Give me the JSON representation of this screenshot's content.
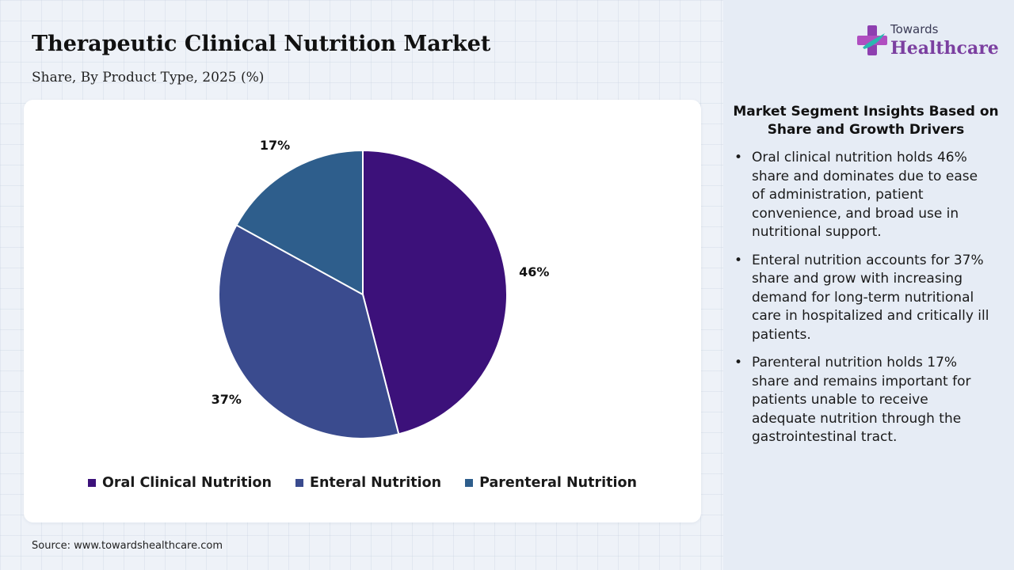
{
  "header": {
    "title": "Therapeutic Clinical Nutrition Market",
    "subtitle": "Share, By Product Type, 2025 (%)"
  },
  "chart_data": {
    "type": "pie",
    "categories": [
      "Oral Clinical Nutrition",
      "Enteral Nutrition",
      "Parenteral Nutrition"
    ],
    "values": [
      46,
      37,
      17
    ],
    "labels": [
      "46%",
      "37%",
      "17%"
    ],
    "colors": [
      "#3c117a",
      "#3a4b8e",
      "#2e5e8c"
    ],
    "title": "Therapeutic Clinical Nutrition Market",
    "subtitle": "Share, By Product Type, 2025 (%)",
    "legend_position": "bottom",
    "start": "12 o'clock, clockwise"
  },
  "source": "Source: www.towardshealthcare.com",
  "logo": {
    "top_text": "Towards",
    "main_text": "Healthcare"
  },
  "insights": {
    "title": "Market Segment Insights Based on Share and Growth Drivers",
    "items": [
      "Oral clinical nutrition holds 46% share and dominates due to ease of administration, patient convenience, and broad use in nutritional support.",
      "Enteral nutrition accounts for 37% share and grow with increasing demand for long-term nutritional care in hospitalized and critically ill patients.",
      "Parenteral nutrition holds 17% share and remains important for patients unable to receive adequate nutrition through the gastrointestinal tract."
    ]
  }
}
